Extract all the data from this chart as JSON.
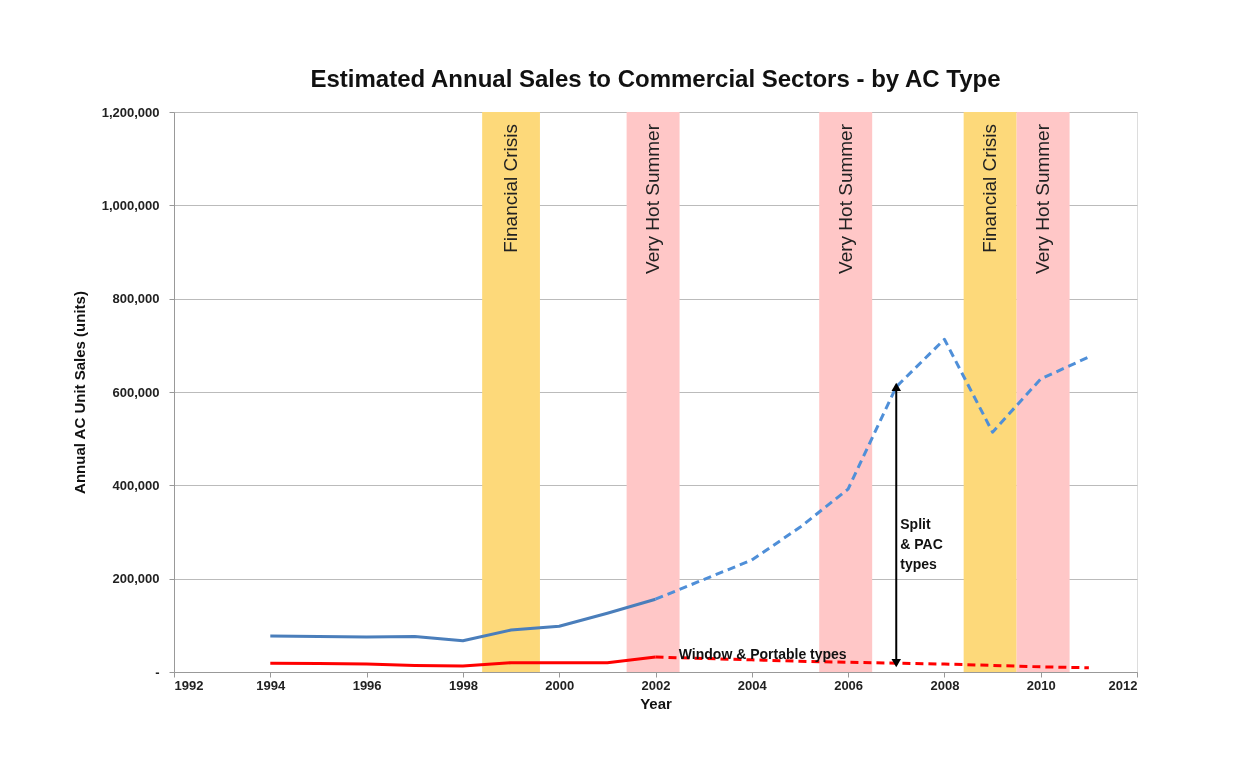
{
  "chart_data": {
    "type": "line",
    "title": "Estimated Annual Sales to Commercial Sectors - by AC Type",
    "xlabel": "Year",
    "ylabel": "Annual AC Unit Sales (units)",
    "xlim": [
      1992,
      2012
    ],
    "xticks": [
      1992,
      1994,
      1996,
      1998,
      2000,
      2002,
      2004,
      2006,
      2008,
      2010,
      2012
    ],
    "ylim": [
      0,
      1200000
    ],
    "yticks": [
      {
        "value": 0,
        "label": "-"
      },
      {
        "value": 200000,
        "label": "200,000"
      },
      {
        "value": 400000,
        "label": "400,000"
      },
      {
        "value": 600000,
        "label": "600,000"
      },
      {
        "value": 800000,
        "label": "800,000"
      },
      {
        "value": 1000000,
        "label": "1,000,000"
      },
      {
        "value": 1200000,
        "label": "1,200,000"
      }
    ],
    "grid": "y",
    "marker": "none",
    "series": [
      {
        "color": "#4a7ebb",
        "line_style": "solid",
        "x": [
          1994,
          1995,
          1996,
          1997,
          1998,
          1999,
          2000,
          2001,
          2002
        ],
        "values": [
          77000,
          76000,
          75000,
          76000,
          67000,
          90000,
          98000,
          126000,
          156000
        ]
      },
      {
        "color": "#4f8fd8",
        "line_style": "dashed",
        "x": [
          2002,
          2003,
          2004,
          2005,
          2006,
          2007,
          2008,
          2009,
          2010,
          2011
        ],
        "values": [
          156000,
          198000,
          240000,
          310000,
          392000,
          611000,
          713000,
          514000,
          628000,
          675000
        ]
      },
      {
        "color": "#ff0000",
        "line_style": "solid",
        "x": [
          1994,
          1995,
          1996,
          1997,
          1998,
          1999,
          2000,
          2001,
          2002
        ],
        "values": [
          19000,
          18000,
          17000,
          14000,
          13000,
          20000,
          20000,
          20000,
          32000
        ]
      },
      {
        "color": "#ff0000",
        "line_style": "dashed",
        "x": [
          2002,
          2003,
          2004,
          2005,
          2006,
          2007,
          2008,
          2009,
          2010,
          2011
        ],
        "values": [
          32000,
          29000,
          26000,
          23000,
          21000,
          19000,
          17000,
          14000,
          11000,
          9000
        ]
      },
      {
        "type": "line",
        "color": "#000000",
        "line_style": "solid",
        "marker": "triangle",
        "x": [
          2007,
          2007
        ],
        "values": [
          19000,
          611000
        ]
      }
    ],
    "bands": [
      {
        "axis": "x",
        "from": 1998.4,
        "to": 1999.6,
        "label": "Financial Crisis",
        "color": "#fdd97a"
      },
      {
        "axis": "x",
        "from": 2001.4,
        "to": 2002.5,
        "label": "Very Hot Summer",
        "color": "#ffc7c7"
      },
      {
        "axis": "x",
        "from": 2005.4,
        "to": 2006.5,
        "label": "Very Hot Summer",
        "color": "#ffc7c7"
      },
      {
        "axis": "x",
        "from": 2008.4,
        "to": 2009.5,
        "label": "Financial Crisis",
        "color": "#fdd97a"
      },
      {
        "axis": "x",
        "from": 2009.5,
        "to": 2010.6,
        "label": "Very Hot Summer",
        "color": "#ffc7c7"
      }
    ],
    "annotations": [
      "Split\n& PAC\ntypes",
      {
        "text": "Window & Portable types",
        "x": 2002.4,
        "y": 36000
      }
    ]
  }
}
